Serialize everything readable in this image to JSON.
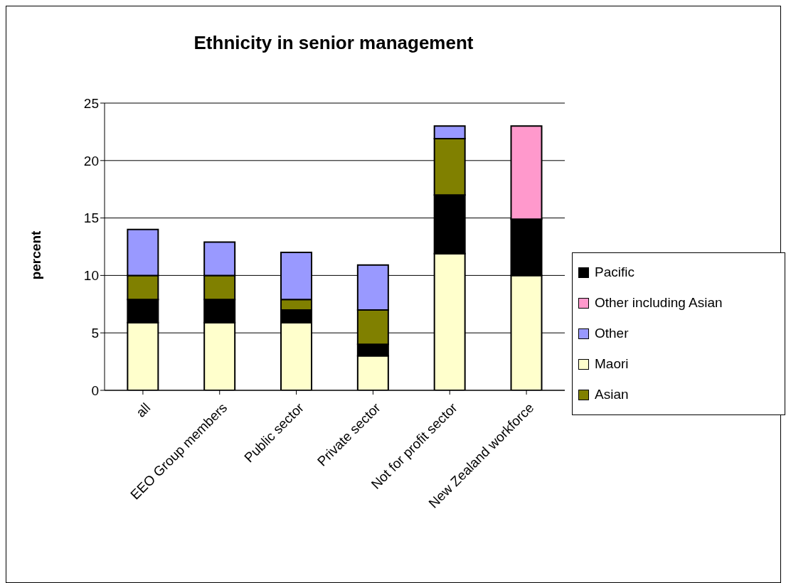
{
  "chart_data": {
    "type": "bar",
    "title": "Ethnicity in senior management",
    "ylabel": "percent",
    "categories": [
      "all",
      "EEO Group members",
      "Public sector",
      "Private sector",
      "Not for profit sector",
      "New Zealand workforce"
    ],
    "stacked": true,
    "ylim": [
      0,
      25
    ],
    "yticks": [
      0,
      5,
      10,
      15,
      20,
      25
    ],
    "grid": "y",
    "legend": "right",
    "series": [
      {
        "name": "Maori",
        "color": "#ffffcc",
        "values": [
          5.9,
          5.9,
          5.9,
          3,
          11.9,
          10
        ]
      },
      {
        "name": "Pacific",
        "color": "#000000",
        "values": [
          2,
          2,
          1.1,
          1,
          5.1,
          4.9
        ]
      },
      {
        "name": "Asian",
        "color": "#808000",
        "values": [
          2.1,
          2.1,
          0.9,
          3,
          4.9,
          null
        ]
      },
      {
        "name": "Other",
        "color": "#9999ff",
        "values": [
          4,
          2.9,
          4.1,
          3.9,
          1.1,
          null
        ]
      },
      {
        "name": "Other including Asian",
        "color": "#ff99cc",
        "values": [
          null,
          null,
          null,
          null,
          null,
          8.1
        ]
      }
    ]
  }
}
